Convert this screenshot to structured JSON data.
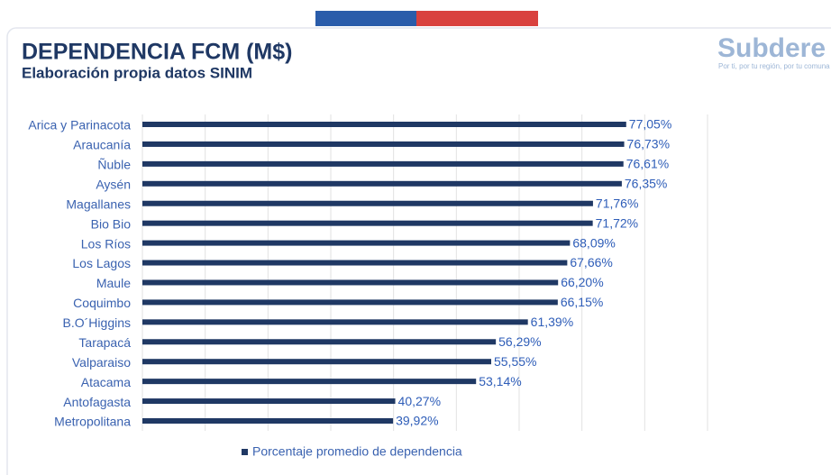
{
  "chart_data": {
    "type": "hbar",
    "title": "DEPENDENCIA FCM (M$)",
    "subtitle": "Elaboración propia datos SINIM",
    "logo": "Subdere",
    "logo_tagline": "Por ti, por tu región, por tu comuna",
    "categories": [
      "Arica y Parinacota",
      "Araucanía",
      "Ñuble",
      "Aysén",
      "Magallanes",
      "Bio Bio",
      "Los Ríos",
      "Los Lagos",
      "Maule",
      "Coquimbo",
      "B.O´Higgins",
      "Tarapacá",
      "Valparaiso",
      "Atacama",
      "Antofagasta",
      "Metropolitana"
    ],
    "series": [
      {
        "name": "Porcentaje promedio de dependencia",
        "color": "#1f3864",
        "values": [
          77.05,
          76.73,
          76.61,
          76.35,
          71.76,
          71.72,
          68.09,
          67.66,
          66.2,
          66.15,
          61.39,
          56.29,
          55.55,
          53.14,
          40.27,
          39.92
        ],
        "value_labels": [
          "77,05%",
          "76,73%",
          "76,61%",
          "76,35%",
          "71,76%",
          "71,72%",
          "68,09%",
          "67,66%",
          "66,20%",
          "66,15%",
          "61,39%",
          "56,29%",
          "55,55%",
          "53,14%",
          "40,27%",
          "39,92%"
        ]
      }
    ],
    "xlim": [
      0,
      90
    ],
    "xticks": [
      0,
      10,
      20,
      30,
      40,
      50,
      60,
      70,
      80,
      90
    ],
    "grid": true
  }
}
